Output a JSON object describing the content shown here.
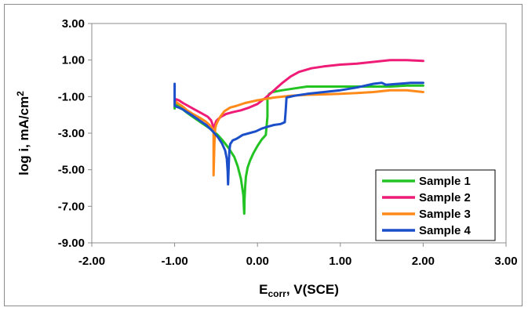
{
  "chart_data": {
    "type": "line",
    "title": "",
    "xlabel": {
      "main": "E",
      "sub": "corr",
      "rest": ", V(SCE)"
    },
    "ylabel": {
      "main": "log i, mA/cm",
      "sup": "2"
    },
    "xlim": [
      -2,
      3
    ],
    "ylim": [
      -9,
      3
    ],
    "x_ticks": [
      -2,
      -1,
      0,
      1,
      2,
      3
    ],
    "x_tick_labels": [
      "-2.00",
      "-1.00",
      "0.00",
      "1.00",
      "2.00",
      "3.00"
    ],
    "y_ticks": [
      3,
      1,
      -1,
      -3,
      -5,
      -7,
      -9
    ],
    "y_tick_labels": [
      "3.00",
      "1.00",
      "-1.00",
      "-3.00",
      "-5.00",
      "-7.00",
      "-9.00"
    ],
    "grid": false,
    "legend_position": "bottom-right",
    "series": [
      {
        "name": "Sample 1",
        "color": "#22c322",
        "x": [
          -1.0,
          -1.0,
          -0.98,
          -0.96,
          -0.93,
          -0.9,
          -0.86,
          -0.8,
          -0.72,
          -0.62,
          -0.54,
          -0.48,
          -0.42,
          -0.35,
          -0.28,
          -0.24,
          -0.2,
          -0.17,
          -0.165,
          -0.16,
          -0.158,
          -0.156,
          -0.15,
          -0.14,
          -0.12,
          -0.09,
          -0.05,
          0.0,
          0.05,
          0.1,
          0.12,
          0.12,
          0.14,
          0.18,
          0.3,
          0.45,
          0.6,
          0.8,
          1.0,
          1.2,
          1.4,
          1.5,
          1.6,
          1.8,
          2.0
        ],
        "y": [
          -1.65,
          -1.55,
          -1.45,
          -1.5,
          -1.6,
          -1.7,
          -1.85,
          -2.05,
          -2.3,
          -2.6,
          -2.85,
          -3.1,
          -3.4,
          -3.8,
          -4.3,
          -4.8,
          -5.5,
          -6.4,
          -7.0,
          -7.4,
          -7.1,
          -6.6,
          -6.0,
          -5.4,
          -4.9,
          -4.5,
          -4.1,
          -3.7,
          -3.35,
          -3.1,
          -2.1,
          -1.05,
          -0.85,
          -0.75,
          -0.65,
          -0.55,
          -0.45,
          -0.45,
          -0.45,
          -0.45,
          -0.45,
          -0.45,
          -0.45,
          -0.4,
          -0.4
        ]
      },
      {
        "name": "Sample 2",
        "color": "#ee1c77",
        "x": [
          -1.0,
          -0.98,
          -0.95,
          -0.9,
          -0.84,
          -0.76,
          -0.68,
          -0.6,
          -0.56,
          -0.54,
          -0.53,
          -0.52,
          -0.51,
          -0.5,
          -0.48,
          -0.44,
          -0.38,
          -0.3,
          -0.2,
          -0.1,
          0.0,
          0.1,
          0.2,
          0.3,
          0.4,
          0.5,
          0.65,
          0.8,
          1.0,
          1.2,
          1.4,
          1.6,
          1.8,
          2.0
        ],
        "y": [
          -1.25,
          -1.15,
          -1.2,
          -1.35,
          -1.5,
          -1.7,
          -1.9,
          -2.1,
          -2.3,
          -2.55,
          -2.7,
          -2.65,
          -2.5,
          -2.35,
          -2.25,
          -2.1,
          -1.95,
          -1.85,
          -1.75,
          -1.6,
          -1.4,
          -1.05,
          -0.65,
          -0.25,
          0.1,
          0.35,
          0.55,
          0.65,
          0.75,
          0.8,
          0.9,
          1.0,
          1.0,
          0.95
        ]
      },
      {
        "name": "Sample 3",
        "color": "#ff8a1a",
        "x": [
          -1.0,
          -0.98,
          -0.95,
          -0.9,
          -0.85,
          -0.78,
          -0.7,
          -0.63,
          -0.58,
          -0.55,
          -0.53,
          -0.53,
          -0.53,
          -0.52,
          -0.51,
          -0.5,
          -0.48,
          -0.45,
          -0.4,
          -0.33,
          -0.25,
          -0.15,
          0.0,
          0.2,
          0.4,
          0.6,
          0.8,
          1.0,
          1.2,
          1.4,
          1.6,
          1.8,
          2.0
        ],
        "y": [
          -1.4,
          -1.3,
          -1.4,
          -1.55,
          -1.75,
          -1.95,
          -2.15,
          -2.35,
          -2.55,
          -2.7,
          -2.9,
          -4.2,
          -5.3,
          -3.6,
          -2.75,
          -2.55,
          -2.35,
          -2.1,
          -1.8,
          -1.6,
          -1.5,
          -1.35,
          -1.2,
          -1.05,
          -0.95,
          -0.9,
          -0.88,
          -0.85,
          -0.8,
          -0.75,
          -0.65,
          -0.65,
          -0.75
        ]
      },
      {
        "name": "Sample 4",
        "color": "#1a4fc9",
        "x": [
          -1.0,
          -1.0,
          -1.0,
          -0.98,
          -0.95,
          -0.9,
          -0.85,
          -0.78,
          -0.7,
          -0.62,
          -0.55,
          -0.48,
          -0.43,
          -0.39,
          -0.37,
          -0.36,
          -0.355,
          -0.35,
          -0.345,
          -0.34,
          -0.33,
          -0.3,
          -0.25,
          -0.18,
          -0.1,
          -0.02,
          0.05,
          0.12,
          0.2,
          0.28,
          0.33,
          0.34,
          0.35,
          0.45,
          0.6,
          0.8,
          1.0,
          1.2,
          1.4,
          1.5,
          1.55,
          1.7,
          1.85,
          2.0
        ],
        "y": [
          -0.3,
          -0.9,
          -1.5,
          -1.55,
          -1.6,
          -1.7,
          -1.85,
          -2.05,
          -2.3,
          -2.55,
          -2.85,
          -3.2,
          -3.55,
          -3.95,
          -4.4,
          -5.1,
          -5.8,
          -5.2,
          -4.5,
          -4.0,
          -3.6,
          -3.4,
          -3.3,
          -3.1,
          -3.0,
          -2.9,
          -2.75,
          -2.65,
          -2.55,
          -2.5,
          -2.4,
          -1.8,
          -1.05,
          -0.95,
          -0.85,
          -0.75,
          -0.65,
          -0.5,
          -0.3,
          -0.25,
          -0.35,
          -0.3,
          -0.25,
          -0.25
        ]
      }
    ]
  }
}
